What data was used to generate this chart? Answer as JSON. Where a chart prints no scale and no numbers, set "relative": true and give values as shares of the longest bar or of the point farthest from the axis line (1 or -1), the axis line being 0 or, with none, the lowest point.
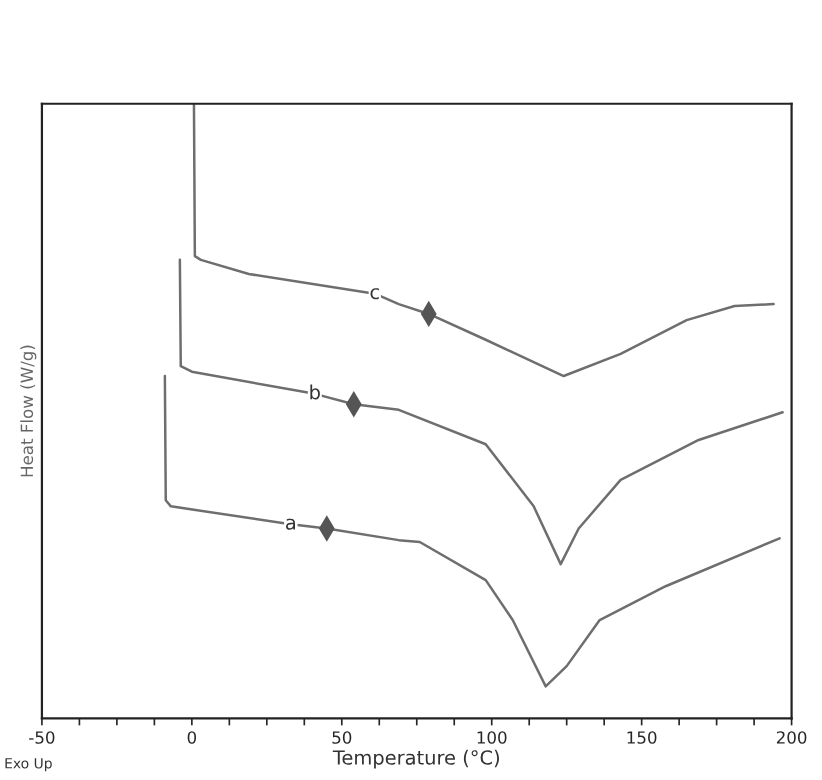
{
  "chart_data": {
    "type": "line",
    "relative": true,
    "xlabel": "Temperature (°C)",
    "ylabel": "Heat Flow (W/g)",
    "xlim": [
      -50,
      200
    ],
    "xticks": [
      -50,
      {
        "value": -37.5,
        "label": null
      },
      {
        "value": -25,
        "label": null
      },
      {
        "value": -12.5,
        "label": null
      },
      0,
      {
        "value": 12.5,
        "label": null
      },
      {
        "value": 25,
        "label": null
      },
      {
        "value": 37.5,
        "label": null
      },
      50,
      {
        "value": 62.5,
        "label": null
      },
      {
        "value": 75,
        "label": null
      },
      {
        "value": 87.5,
        "label": null
      },
      100,
      {
        "value": 112.5,
        "label": null
      },
      {
        "value": 125,
        "label": null
      },
      {
        "value": 137.5,
        "label": null
      },
      150,
      {
        "value": 162.5,
        "label": null
      },
      {
        "value": 175,
        "label": null
      },
      {
        "value": 187.5,
        "label": null
      },
      200
    ],
    "tick_labels": "x",
    "grid": false,
    "legend": false,
    "line_style": "solid",
    "marker": "none",
    "series": [
      {
        "color": "#6e6e6e",
        "x": [
          0.7,
          1.0,
          3,
          19,
          61,
          69,
          79,
          98,
          124,
          143,
          165,
          181,
          194
        ],
        "values": [
          1,
          0.752,
          0.746,
          0.723,
          0.691,
          0.674,
          0.658,
          0.616,
          0.557,
          0.593,
          0.648,
          0.671,
          0.674
        ]
      },
      {
        "color": "#6e6e6e",
        "x": [
          -4,
          -3.7,
          0,
          41,
          54,
          69,
          98,
          114,
          123,
          129,
          143,
          169,
          197
        ],
        "values": [
          0.746,
          0.573,
          0.564,
          0.528,
          0.511,
          0.502,
          0.446,
          0.345,
          0.251,
          0.309,
          0.388,
          0.453,
          0.498
        ]
      },
      {
        "color": "#6e6e6e",
        "x": [
          -9,
          -8.7,
          -7,
          33,
          45,
          69,
          76,
          98,
          107,
          118,
          125,
          136,
          158,
          196
        ],
        "values": [
          0.557,
          0.355,
          0.345,
          0.316,
          0.309,
          0.29,
          0.287,
          0.225,
          0.16,
          0.052,
          0.085,
          0.16,
          0.215,
          0.293
        ]
      },
      {
        "type": "scatter",
        "marker": "diamond",
        "color": "#555555",
        "x": [
          79,
          54,
          45
        ],
        "values": [
          0.658,
          0.511,
          0.309
        ]
      }
    ],
    "annotations": [
      {
        "text": "c",
        "x": 61,
        "y": 0.691
      },
      {
        "text": "b",
        "x": 41,
        "y": 0.528
      },
      {
        "text": "a",
        "x": 33,
        "y": 0.316
      },
      "Exo Up"
    ]
  }
}
